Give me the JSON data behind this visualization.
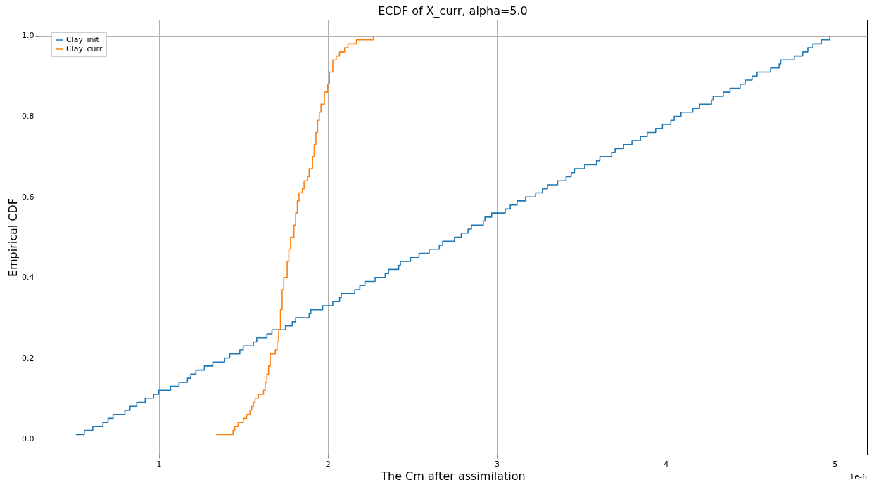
{
  "chart_data": {
    "type": "step",
    "title": "ECDF of X_curr, alpha=5.0",
    "xlabel": "The Cm after assimilation",
    "ylabel": "Empirical CDF",
    "xlim": [
      0.29,
      5.19
    ],
    "ylim": [
      -0.04,
      1.04
    ],
    "xticks": [
      1,
      2,
      3,
      4,
      5
    ],
    "yticks": [
      {
        "value": 0,
        "label": "0.0"
      },
      {
        "value": 0.2,
        "label": "0.2"
      },
      {
        "value": 0.4,
        "label": "0.4"
      },
      {
        "value": 0.6,
        "label": "0.6"
      },
      {
        "value": 0.8,
        "label": "0.8"
      },
      {
        "value": 1,
        "label": "1.0"
      }
    ],
    "grid": true,
    "legend": "top left",
    "annotations": [
      "1e-6"
    ],
    "series": [
      {
        "name": "Clay_init",
        "color": "#1f77b4",
        "x": [
          0.51,
          0.56,
          0.61,
          0.67,
          0.7,
          0.73,
          0.8,
          0.83,
          0.87,
          0.92,
          0.97,
          1.0,
          1.07,
          1.12,
          1.17,
          1.19,
          1.22,
          1.27,
          1.32,
          1.39,
          1.42,
          1.48,
          1.5,
          1.56,
          1.58,
          1.64,
          1.67,
          1.75,
          1.79,
          1.81,
          1.89,
          1.9,
          1.97,
          2.03,
          2.07,
          2.08,
          2.16,
          2.19,
          2.22,
          2.28,
          2.34,
          2.36,
          2.42,
          2.43,
          2.49,
          2.54,
          2.6,
          2.66,
          2.68,
          2.75,
          2.79,
          2.83,
          2.85,
          2.92,
          2.93,
          2.97,
          3.05,
          3.08,
          3.12,
          3.17,
          3.23,
          3.27,
          3.3,
          3.36,
          3.41,
          3.44,
          3.46,
          3.52,
          3.59,
          3.61,
          3.68,
          3.7,
          3.75,
          3.8,
          3.85,
          3.89,
          3.94,
          3.98,
          4.03,
          4.05,
          4.09,
          4.16,
          4.2,
          4.27,
          4.28,
          4.34,
          4.38,
          4.44,
          4.47,
          4.51,
          4.54,
          4.62,
          4.67,
          4.68,
          4.76,
          4.81,
          4.84,
          4.87,
          4.92,
          4.97
        ],
        "values": [
          0.01,
          0.02,
          0.03,
          0.04,
          0.05,
          0.06,
          0.07,
          0.08,
          0.09,
          0.1,
          0.11,
          0.12,
          0.13,
          0.14,
          0.15,
          0.16,
          0.17,
          0.18,
          0.19,
          0.2,
          0.21,
          0.22,
          0.23,
          0.24,
          0.25,
          0.26,
          0.27,
          0.28,
          0.29,
          0.3,
          0.31,
          0.32,
          0.33,
          0.34,
          0.35,
          0.36,
          0.37,
          0.38,
          0.39,
          0.4,
          0.41,
          0.42,
          0.43,
          0.44,
          0.45,
          0.46,
          0.47,
          0.48,
          0.49,
          0.5,
          0.51,
          0.52,
          0.53,
          0.54,
          0.55,
          0.56,
          0.57,
          0.58,
          0.59,
          0.6,
          0.61,
          0.62,
          0.63,
          0.64,
          0.65,
          0.66,
          0.67,
          0.68,
          0.69,
          0.7,
          0.71,
          0.72,
          0.73,
          0.74,
          0.75,
          0.76,
          0.77,
          0.78,
          0.79,
          0.8,
          0.81,
          0.82,
          0.83,
          0.84,
          0.85,
          0.86,
          0.87,
          0.88,
          0.89,
          0.9,
          0.91,
          0.92,
          0.93,
          0.94,
          0.95,
          0.96,
          0.97,
          0.98,
          0.99,
          1.0
        ]
      },
      {
        "name": "Clay_curr",
        "color": "#ff7f0e",
        "x": [
          1.34,
          1.44,
          1.45,
          1.47,
          1.5,
          1.52,
          1.54,
          1.55,
          1.56,
          1.57,
          1.59,
          1.62,
          1.63,
          1.64,
          1.65,
          1.66,
          1.69,
          1.7,
          1.71,
          1.72,
          1.73,
          1.74,
          1.76,
          1.77,
          1.78,
          1.8,
          1.81,
          1.82,
          1.83,
          1.85,
          1.86,
          1.88,
          1.89,
          1.91,
          1.92,
          1.93,
          1.94,
          1.95,
          1.96,
          1.98,
          2.0,
          2.01,
          2.03,
          2.05,
          2.07,
          2.1,
          2.12,
          2.17,
          2.27
        ],
        "values": [
          0.01,
          0.02,
          0.03,
          0.04,
          0.05,
          0.06,
          0.07,
          0.08,
          0.09,
          0.1,
          0.11,
          0.12,
          0.14,
          0.16,
          0.18,
          0.21,
          0.22,
          0.24,
          0.27,
          0.32,
          0.37,
          0.4,
          0.44,
          0.47,
          0.5,
          0.53,
          0.56,
          0.59,
          0.61,
          0.62,
          0.64,
          0.65,
          0.67,
          0.7,
          0.73,
          0.76,
          0.79,
          0.81,
          0.83,
          0.86,
          0.88,
          0.91,
          0.94,
          0.95,
          0.96,
          0.97,
          0.98,
          0.99,
          1.0
        ]
      }
    ]
  }
}
